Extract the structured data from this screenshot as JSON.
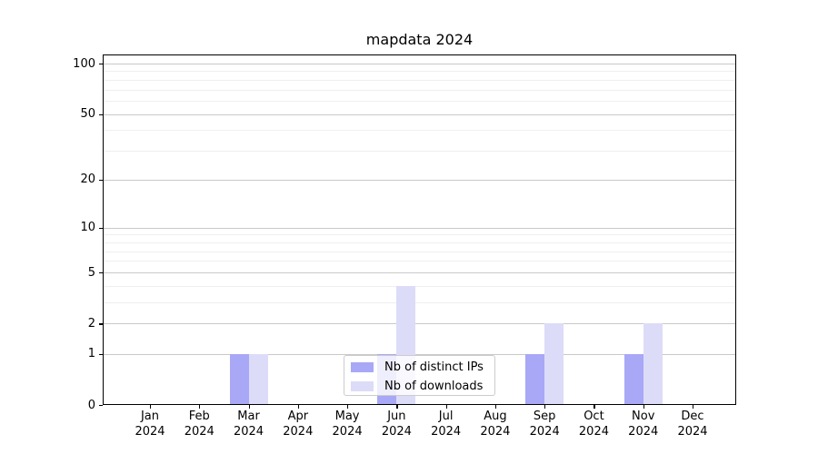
{
  "chart_data": {
    "type": "bar",
    "title": "mapdata 2024",
    "categories": [
      "Jan 2024",
      "Feb 2024",
      "Mar 2024",
      "Apr 2024",
      "May 2024",
      "Jun 2024",
      "Jul 2024",
      "Aug 2024",
      "Sep 2024",
      "Oct 2024",
      "Nov 2024",
      "Dec 2024"
    ],
    "series": [
      {
        "name": "Nb of distinct IPs",
        "color": "#a8a8f6",
        "values": [
          0,
          0,
          1,
          0,
          0,
          1,
          0,
          0,
          1,
          0,
          1,
          0
        ]
      },
      {
        "name": "Nb of downloads",
        "color": "#dcdcf8",
        "values": [
          0,
          0,
          1,
          0,
          0,
          4,
          0,
          0,
          2,
          0,
          2,
          0
        ]
      }
    ],
    "xlabel": "",
    "ylabel": "",
    "y_scale": "log1p",
    "ylim": [
      0,
      113
    ],
    "y_ticks": [
      0,
      1,
      2,
      5,
      10,
      20,
      50,
      100
    ],
    "y_minor_ticks": [
      3,
      4,
      6,
      7,
      8,
      9,
      30,
      40,
      60,
      70,
      80,
      90
    ],
    "grid": true,
    "grid_major_color": "#c9c9c9",
    "grid_minor_color": "#efefef",
    "legend": {
      "position": "lower center",
      "border_color": "#cccccc",
      "background": "rgba(255,255,255,0.8)",
      "entries": [
        "Nb of distinct IPs",
        "Nb of downloads"
      ]
    }
  }
}
